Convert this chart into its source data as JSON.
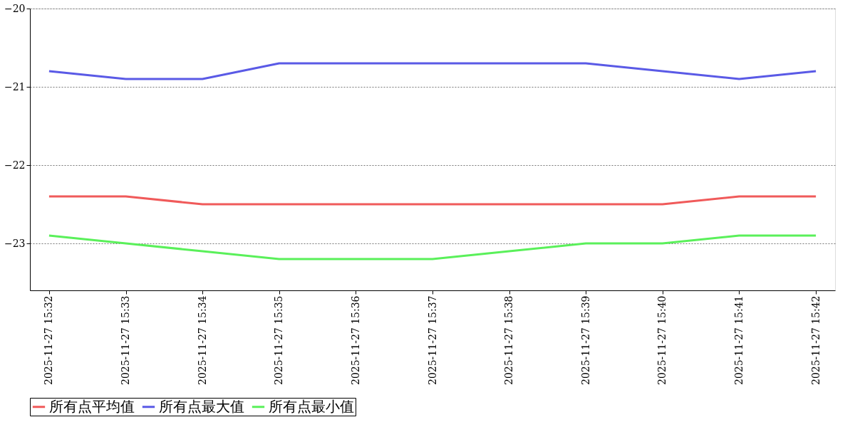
{
  "chart_data": {
    "type": "line",
    "categories": [
      "2025-11-27 15:32",
      "2025-11-27 15:33",
      "2025-11-27 15:34",
      "2025-11-27 15:35",
      "2025-11-27 15:36",
      "2025-11-27 15:37",
      "2025-11-27 15:38",
      "2025-11-27 15:39",
      "2025-11-27 15:40",
      "2025-11-27 15:41",
      "2025-11-27 15:42"
    ],
    "series": [
      {
        "name": "所有点平均值",
        "color": "#f05a5a",
        "values": [
          -22.4,
          -22.4,
          -22.5,
          -22.5,
          -22.5,
          -22.5,
          -22.5,
          -22.5,
          -22.5,
          -22.4,
          -22.4
        ]
      },
      {
        "name": "所有点最大值",
        "color": "#5a5ae6",
        "values": [
          -20.8,
          -20.9,
          -20.9,
          -20.7,
          -20.7,
          -20.7,
          -20.7,
          -20.7,
          -20.8,
          -20.9,
          -20.8
        ]
      },
      {
        "name": "所有点最小值",
        "color": "#5af05a",
        "values": [
          -22.9,
          -23.0,
          -23.1,
          -23.2,
          -23.2,
          -23.2,
          -23.1,
          -23.0,
          -23.0,
          -22.9,
          -22.9
        ]
      }
    ],
    "ylim": [
      -23.6,
      -20
    ],
    "yticks": [
      -23,
      -22,
      -21,
      -20
    ],
    "grid": "y",
    "legend": "bottom",
    "marker": "none",
    "line_style": "solid"
  }
}
